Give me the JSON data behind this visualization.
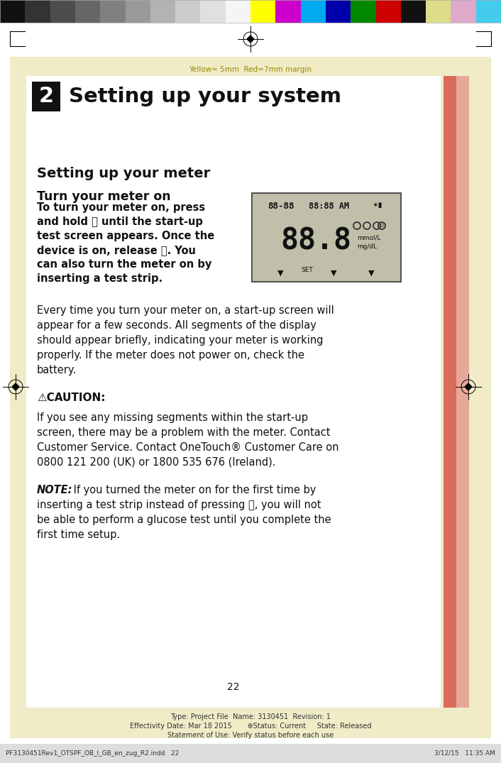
{
  "fig_width": 7.06,
  "fig_height": 10.75,
  "dpi": 100,
  "bg_color": "#ffffff",
  "outer_bg": "#f0ecc8",
  "page_bg": "#ffffff",
  "yellow_margin_text": "Yellow= 5mm  Red=7mm margin",
  "chapter_num": "2",
  "chapter_title": "Setting up your system",
  "section_title": "Setting up your meter",
  "subsection_title": "Turn your meter on",
  "page_number": "22",
  "footer_text1": "Type: Project File  Name: 3130451  Revision: 1",
  "footer_text2": "Effectivity Date: Mar 18 2015       ⊕Status: Current     State: Released",
  "footer_text3": "Statement of Use: Verify status before each use",
  "bottom_bar_text": "PF3130451Rev1_OTSPF_OB_I_GB_en_zug_R2.indd   22",
  "bottom_bar_right": "3/12/15   11:35 AM",
  "red_bar_color": "#d96b5a",
  "red_bar2_color": "#e8a898",
  "gray_bar_colors": [
    "#111111",
    "#333333",
    "#4d4d4d",
    "#666666",
    "#808080",
    "#999999",
    "#b3b3b3",
    "#cccccc",
    "#e0e0e0",
    "#f5f5f5"
  ],
  "color_bar_colors": [
    "#ffff00",
    "#cc00cc",
    "#00aaee",
    "#0000aa",
    "#008800",
    "#cc0000",
    "#111111",
    "#dddd88",
    "#ddaacc",
    "#44ccee"
  ]
}
